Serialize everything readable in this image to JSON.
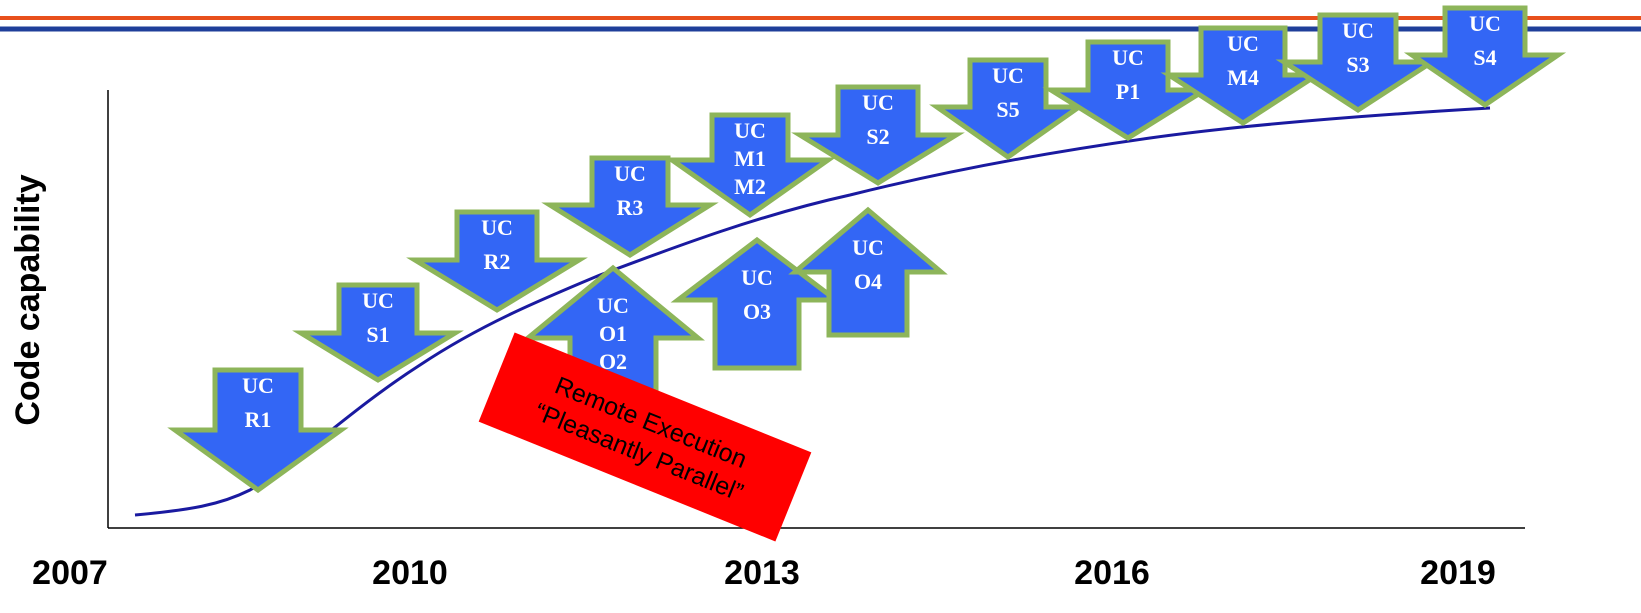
{
  "axis": {
    "y_label": "Code capability",
    "x_labels": [
      "2007",
      "2010",
      "2013",
      "2016",
      "2019"
    ]
  },
  "arrows": [
    {
      "direction": "down",
      "label": [
        "UC",
        "R1"
      ]
    },
    {
      "direction": "down",
      "label": [
        "UC",
        "S1"
      ]
    },
    {
      "direction": "down",
      "label": [
        "UC",
        "R2"
      ]
    },
    {
      "direction": "down",
      "label": [
        "UC",
        "R3"
      ]
    },
    {
      "direction": "down",
      "label": [
        "UC",
        "M1",
        "M2"
      ]
    },
    {
      "direction": "down",
      "label": [
        "UC",
        "S2"
      ]
    },
    {
      "direction": "down",
      "label": [
        "UC",
        "S5"
      ]
    },
    {
      "direction": "down",
      "label": [
        "UC",
        "P1"
      ]
    },
    {
      "direction": "down",
      "label": [
        "UC",
        "M4"
      ]
    },
    {
      "direction": "down",
      "label": [
        "UC",
        "S3"
      ]
    },
    {
      "direction": "down",
      "label": [
        "UC",
        "S4"
      ]
    },
    {
      "direction": "up",
      "label": [
        "UC",
        "O1",
        "O2"
      ]
    },
    {
      "direction": "up",
      "label": [
        "UC",
        "O3"
      ]
    },
    {
      "direction": "up",
      "label": [
        "UC",
        "O4"
      ]
    }
  ],
  "callout": {
    "lines": [
      "Remote Execution",
      "“Pleasantly Parallel”"
    ]
  }
}
